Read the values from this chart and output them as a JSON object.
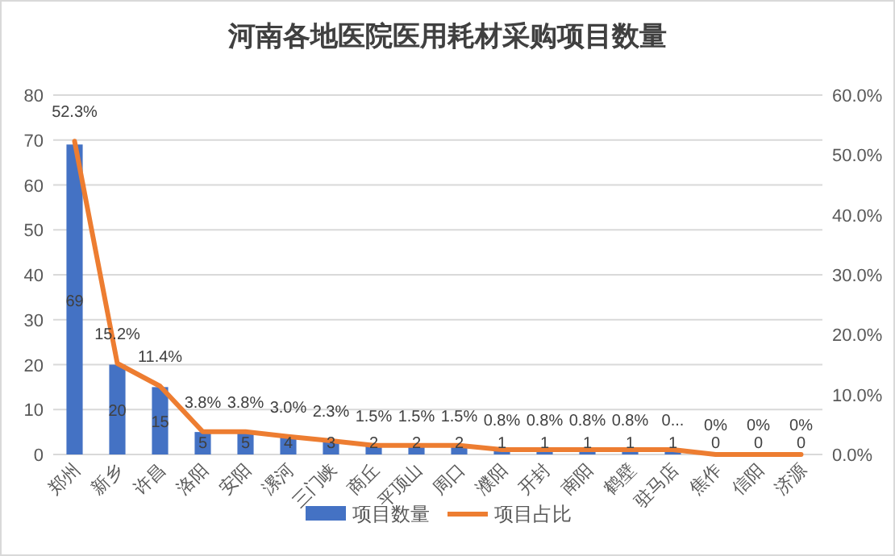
{
  "chart_data": {
    "type": "bar",
    "title": "河南各地医院医用耗材采购项目数量",
    "categories": [
      "郑州",
      "新乡",
      "许昌",
      "洛阳",
      "安阳",
      "漯河",
      "三门峡",
      "商丘",
      "平顶山",
      "周口",
      "濮阳",
      "开封",
      "南阳",
      "鹤壁",
      "驻马店",
      "焦作",
      "信阳",
      "济源"
    ],
    "series": [
      {
        "name": "项目数量",
        "color": "#4472c4",
        "values": [
          69,
          20,
          15,
          5,
          5,
          4,
          3,
          2,
          2,
          2,
          1,
          1,
          1,
          1,
          1,
          0,
          0,
          0
        ],
        "value_labels": [
          "69",
          "20",
          "15",
          "5",
          "5",
          "4",
          "3",
          "2",
          "2",
          "2",
          "1",
          "1",
          "1",
          "1",
          "1",
          "0",
          "0",
          "0"
        ]
      },
      {
        "name": "项目占比",
        "type": "line",
        "axis": "y2",
        "color": "#ed7d31",
        "values": [
          52.3,
          15.2,
          11.4,
          3.8,
          3.8,
          3.0,
          2.3,
          1.5,
          1.5,
          1.5,
          0.8,
          0.8,
          0.8,
          0.8,
          0.8,
          0,
          0,
          0
        ],
        "value_labels": [
          "52.3%",
          "15.2%",
          "11.4%",
          "3.8%",
          "3.8%",
          "3.0%",
          "2.3%",
          "1.5%",
          "1.5%",
          "1.5%",
          "0.8%",
          "0.8%",
          "0.8%",
          "0.8%",
          "0...",
          "0%",
          "0%",
          "0%"
        ]
      }
    ],
    "ylim": [
      0,
      80
    ],
    "yticks": [
      0,
      10,
      20,
      30,
      40,
      50,
      60,
      70,
      80
    ],
    "y2lim": [
      0,
      60
    ],
    "y2ticks": [
      {
        "value": 0,
        "label": "0.0%"
      },
      {
        "value": 10,
        "label": "10.0%"
      },
      {
        "value": 20,
        "label": "20.0%"
      },
      {
        "value": 30,
        "label": "30.0%"
      },
      {
        "value": 40,
        "label": "40.0%"
      },
      {
        "value": 50,
        "label": "50.0%"
      },
      {
        "value": 60,
        "label": "60.0%"
      }
    ],
    "grid": "y",
    "legend": "bottom",
    "marker": "none"
  }
}
